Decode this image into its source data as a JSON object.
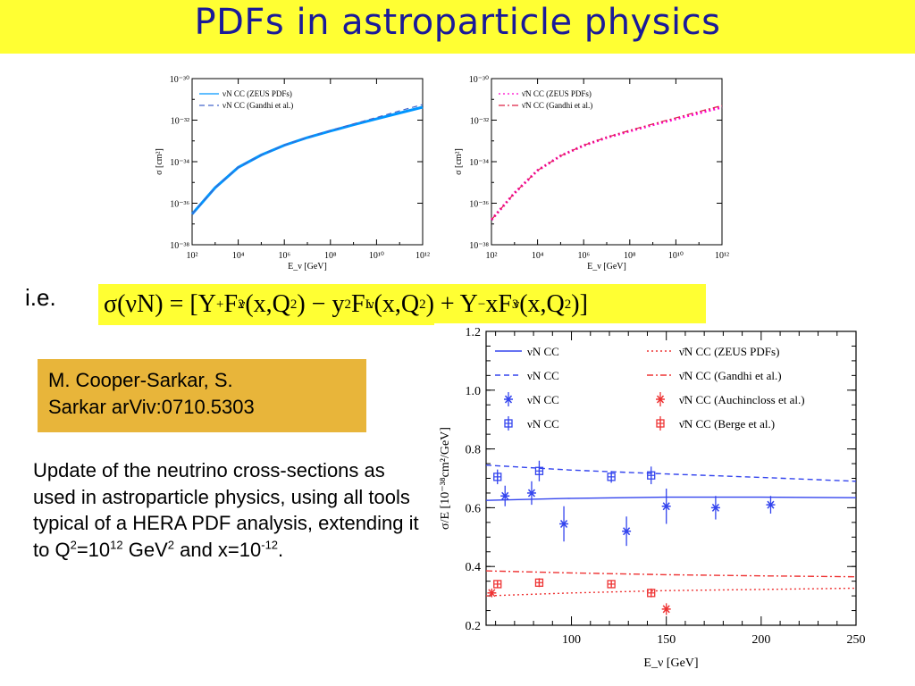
{
  "header": {
    "title": "PDFs in astroparticle physics"
  },
  "ie_label": "i.e.",
  "formula": {
    "sigma": "σ(νN) = [Y",
    "plus": "+",
    "f2": "F",
    "f2sub": "2",
    "nu": "ν",
    "xq": " (x,Q",
    "sq": "2",
    "minus_y": ") − y",
    "y2": "2",
    "fl": "F",
    "flsub": "L",
    "xq2": " (x,Q",
    "plus_y": ") + Y",
    "minussub": "−",
    "xf3": "xF",
    "f3sub": "3",
    "end": ")]"
  },
  "reference": {
    "line1": "M. Cooper-Sarkar, S.",
    "line2": "Sarkar arViv:0710.5303"
  },
  "description": {
    "text1": "Update of the neutrino cross-sections as used in astroparticle physics, using all tools typical of a HERA PDF analysis, extending it to Q",
    "sup1": "2",
    "text2": "=10",
    "sup2": "12",
    "text3": " GeV",
    "sup3": "2",
    "text4": " and x=10",
    "sup4": "-12",
    "text5": "."
  },
  "chart_data": [
    {
      "type": "line",
      "xlabel": "E_ν [GeV]",
      "ylabel": "σ [cm²]",
      "x_scale": "log",
      "y_scale": "log",
      "xlim": [
        100,
        1000000000000.0
      ],
      "ylim": [
        1e-38,
        1e-30
      ],
      "x_ticks": [
        "10²",
        "10⁴",
        "10⁶",
        "10⁸",
        "10¹⁰",
        "10¹²"
      ],
      "y_ticks": [
        "10⁻³⁸",
        "10⁻³⁶",
        "10⁻³⁴",
        "10⁻³²",
        "10⁻³⁰"
      ],
      "legend_position": "top-left",
      "series": [
        {
          "name": "νN CC (ZEUS PDFs)",
          "color": "#0096ff",
          "style": "solid",
          "x": [
            100,
            1000.0,
            10000.0,
            100000.0,
            1000000.0,
            10000000.0,
            100000000.0,
            1000000000.0,
            10000000000.0,
            100000000000.0,
            1000000000000.0
          ],
          "y": [
            3e-37,
            5.6e-36,
            5.3e-35,
            2.1e-34,
            6.2e-34,
            1.45e-33,
            3e-33,
            6e-33,
            1.15e-32,
            2.2e-32,
            4.2e-32
          ]
        },
        {
          "name": "νN CC (Gandhi et al.)",
          "color": "#4466cc",
          "style": "dashed",
          "x": [
            100,
            1000.0,
            10000.0,
            100000.0,
            1000000.0,
            10000000.0,
            100000000.0,
            1000000000.0,
            10000000000.0,
            100000000000.0,
            1000000000000.0
          ],
          "y": [
            3e-37,
            5.6e-36,
            5.3e-35,
            2.1e-34,
            6.3e-34,
            1.5e-33,
            3.2e-33,
            6.6e-33,
            1.35e-32,
            2.8e-32,
            5.6e-32
          ]
        }
      ]
    },
    {
      "type": "line",
      "xlabel": "E_ν [GeV]",
      "ylabel": "σ [cm²]",
      "x_scale": "log",
      "y_scale": "log",
      "xlim": [
        100,
        1000000000000.0
      ],
      "ylim": [
        1e-38,
        1e-30
      ],
      "x_ticks": [
        "10²",
        "10⁴",
        "10⁶",
        "10⁸",
        "10¹⁰",
        "10¹²"
      ],
      "y_ticks": [
        "10⁻³⁸",
        "10⁻³⁶",
        "10⁻³⁴",
        "10⁻³²",
        "10⁻³⁰"
      ],
      "legend_position": "top-left",
      "series": [
        {
          "name": "ν̄N CC (ZEUS PDFs)",
          "color": "#ff00cc",
          "style": "dotted",
          "x": [
            100,
            1000.0,
            10000.0,
            100000.0,
            1000000.0,
            10000000.0,
            100000000.0,
            1000000000.0,
            10000000000.0,
            100000000000.0,
            1000000000000.0
          ],
          "y": [
            1.6e-37,
            3.1e-36,
            3.8e-35,
            1.9e-34,
            6e-34,
            1.45e-33,
            3e-33,
            6e-33,
            1.15e-32,
            2.2e-32,
            4.2e-32
          ]
        },
        {
          "name": "ν̄N CC (Gandhi et al.)",
          "color": "#dd2244",
          "style": "dashdot",
          "x": [
            100,
            1000.0,
            10000.0,
            100000.0,
            1000000.0,
            10000000.0,
            100000000.0,
            1000000000.0,
            10000000000.0,
            100000000000.0,
            1000000000000.0
          ],
          "y": [
            1.6e-37,
            3.1e-36,
            3.8e-35,
            1.9e-34,
            6.1e-34,
            1.5e-33,
            3.2e-33,
            6.5e-33,
            1.3e-32,
            2.6e-32,
            5e-32
          ]
        }
      ]
    },
    {
      "type": "scatter",
      "xlabel": "E_ν [GeV]",
      "ylabel": "σ/E [10⁻³⁸cm²/GeV]",
      "xlim": [
        55,
        250
      ],
      "ylim": [
        0.2,
        1.2
      ],
      "x_ticks": [
        100,
        150,
        200,
        250
      ],
      "y_ticks": [
        0.2,
        0.4,
        0.6,
        0.8,
        1.0,
        1.2
      ],
      "legend_position": "top",
      "lines": [
        {
          "name": "νN CC",
          "color": "#3344ee",
          "style": "solid",
          "x": [
            55,
            100,
            150,
            200,
            250
          ],
          "y": [
            0.625,
            0.632,
            0.636,
            0.636,
            0.634
          ]
        },
        {
          "name": "νN CC",
          "color": "#3344ee",
          "style": "dashed",
          "x": [
            55,
            100,
            150,
            200,
            250
          ],
          "y": [
            0.745,
            0.728,
            0.715,
            0.703,
            0.69
          ]
        },
        {
          "name": "ν̄N CC (ZEUS PDFs)",
          "color": "#ee3333",
          "style": "dotted",
          "x": [
            55,
            100,
            150,
            200,
            250
          ],
          "y": [
            0.3,
            0.31,
            0.318,
            0.322,
            0.326
          ]
        },
        {
          "name": "ν̄N CC (Gandhi et al.)",
          "color": "#ee3333",
          "style": "dashdot",
          "x": [
            55,
            100,
            150,
            200,
            250
          ],
          "y": [
            0.385,
            0.378,
            0.372,
            0.368,
            0.365
          ]
        }
      ],
      "points": [
        {
          "name": "νN CC",
          "source": "Auchincloss et al.",
          "marker": "star",
          "color": "#3344ee",
          "x": [
            65,
            79,
            96,
            129,
            150,
            176,
            205
          ],
          "y": [
            0.64,
            0.65,
            0.545,
            0.52,
            0.605,
            0.6,
            0.61
          ],
          "err": [
            0.035,
            0.04,
            0.06,
            0.05,
            0.06,
            0.04,
            0.03
          ]
        },
        {
          "name": "νN CC",
          "source": "Berge et al.",
          "marker": "boxplus",
          "color": "#3344ee",
          "x": [
            61,
            83,
            121,
            142
          ],
          "y": [
            0.705,
            0.725,
            0.705,
            0.71
          ],
          "err": [
            0.025,
            0.035,
            0.02,
            0.03
          ]
        },
        {
          "name": "ν̄N CC (Auchincloss et al.)",
          "source": "Auchincloss et al.",
          "marker": "star",
          "color": "#ee3333",
          "x": [
            58,
            150
          ],
          "y": [
            0.31,
            0.255
          ],
          "err": [
            0.015,
            0.02
          ]
        },
        {
          "name": "ν̄N CC (Berge et al.)",
          "source": "Berge et al.",
          "marker": "boxplus",
          "color": "#ee3333",
          "x": [
            61,
            83,
            121,
            142
          ],
          "y": [
            0.34,
            0.345,
            0.34,
            0.31
          ],
          "err": [
            0.01,
            0.015,
            0.01,
            0.015
          ]
        }
      ]
    }
  ]
}
